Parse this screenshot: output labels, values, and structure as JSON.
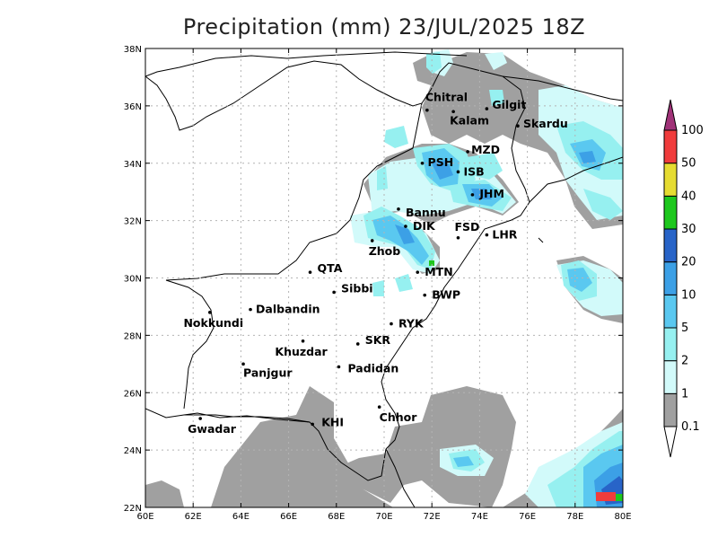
{
  "title": "Precipitation (mm) 23/JUL/2025 18Z",
  "map": {
    "lon_range": [
      60,
      80
    ],
    "lat_range": [
      22,
      38
    ],
    "lon_ticks": [
      "60E",
      "62E",
      "64E",
      "66E",
      "68E",
      "70E",
      "72E",
      "74E",
      "76E",
      "78E",
      "80E"
    ],
    "lat_ticks": [
      "22N",
      "24N",
      "26N",
      "28N",
      "30N",
      "32N",
      "34N",
      "36N",
      "38N"
    ],
    "grid": true
  },
  "cities": [
    {
      "name": "Chitral",
      "lon": 71.8,
      "lat": 35.85
    },
    {
      "name": "Gilgit",
      "lon": 74.3,
      "lat": 35.9
    },
    {
      "name": "Kalam",
      "lon": 72.9,
      "lat": 35.8
    },
    {
      "name": "Skardu",
      "lon": 75.6,
      "lat": 35.3
    },
    {
      "name": "MZD",
      "lon": 73.5,
      "lat": 34.4
    },
    {
      "name": "PSH",
      "lon": 71.6,
      "lat": 34.0
    },
    {
      "name": "ISB",
      "lon": 73.1,
      "lat": 33.7
    },
    {
      "name": "JHM",
      "lon": 73.7,
      "lat": 32.9
    },
    {
      "name": "Bannu",
      "lon": 70.6,
      "lat": 32.4
    },
    {
      "name": "DIK",
      "lon": 70.9,
      "lat": 31.8
    },
    {
      "name": "FSD",
      "lon": 73.1,
      "lat": 31.4
    },
    {
      "name": "LHR",
      "lon": 74.3,
      "lat": 31.5
    },
    {
      "name": "Zhob",
      "lon": 69.5,
      "lat": 31.3
    },
    {
      "name": "QTA",
      "lon": 66.9,
      "lat": 30.2
    },
    {
      "name": "MTN",
      "lon": 71.4,
      "lat": 30.2
    },
    {
      "name": "Sibbi",
      "lon": 67.9,
      "lat": 29.5
    },
    {
      "name": "BWP",
      "lon": 71.7,
      "lat": 29.4
    },
    {
      "name": "Dalbandin",
      "lon": 64.4,
      "lat": 28.9
    },
    {
      "name": "Nokkundi",
      "lon": 62.7,
      "lat": 28.8
    },
    {
      "name": "RYK",
      "lon": 70.3,
      "lat": 28.4
    },
    {
      "name": "Khuzdar",
      "lon": 66.6,
      "lat": 27.8
    },
    {
      "name": "SKR",
      "lon": 68.9,
      "lat": 27.7
    },
    {
      "name": "Panjgur",
      "lon": 64.1,
      "lat": 27.0
    },
    {
      "name": "Padidan",
      "lon": 68.1,
      "lat": 26.9
    },
    {
      "name": "Chhor",
      "lon": 69.8,
      "lat": 25.5
    },
    {
      "name": "KHI",
      "lon": 67.0,
      "lat": 24.9
    },
    {
      "name": "Gwadar",
      "lon": 62.3,
      "lat": 25.1
    }
  ],
  "colorbar": {
    "levels": [
      "0.1",
      "1",
      "2",
      "5",
      "10",
      "20",
      "30",
      "40",
      "50",
      "100"
    ],
    "colors": [
      "#a0a0a0",
      "#d2fafa",
      "#96f0f0",
      "#5ac8f0",
      "#3ca0e6",
      "#2864c8",
      "#1ec81e",
      "#e6dc32",
      "#f03c3c",
      "#a03278"
    ]
  }
}
